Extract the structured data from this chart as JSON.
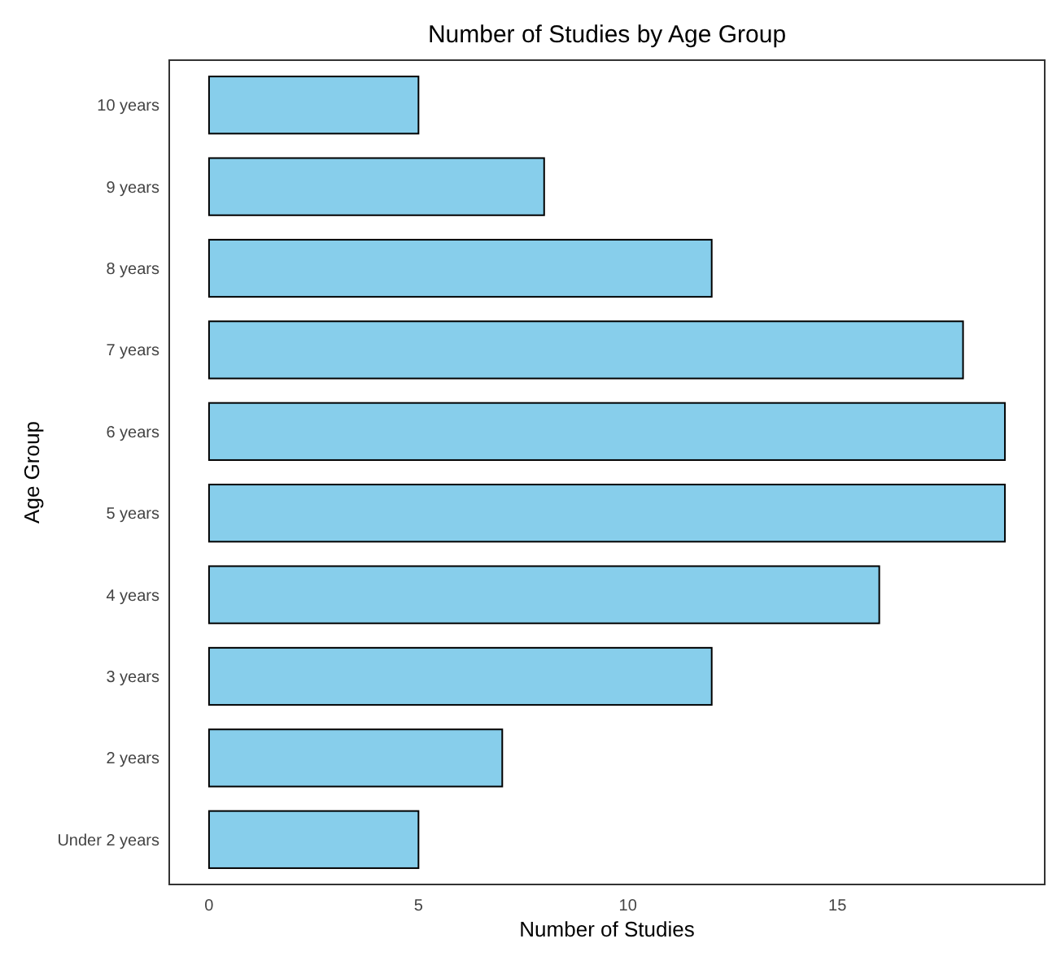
{
  "chart_data": {
    "type": "bar",
    "orientation": "horizontal",
    "title": "Number of Studies by Age Group",
    "xlabel": "Number of Studies",
    "ylabel": "Age Group",
    "categories": [
      "10 years",
      "9 years",
      "8 years",
      "7 years",
      "6 years",
      "5 years",
      "4 years",
      "3 years",
      "2 years",
      "Under 2 years"
    ],
    "values": [
      5,
      8,
      12,
      18,
      19,
      19,
      16,
      12,
      7,
      5
    ],
    "color": "#87ceeb",
    "xlim": [
      -0.95,
      19.95
    ],
    "xticks": [
      0,
      5,
      10,
      15
    ],
    "grid": false
  }
}
